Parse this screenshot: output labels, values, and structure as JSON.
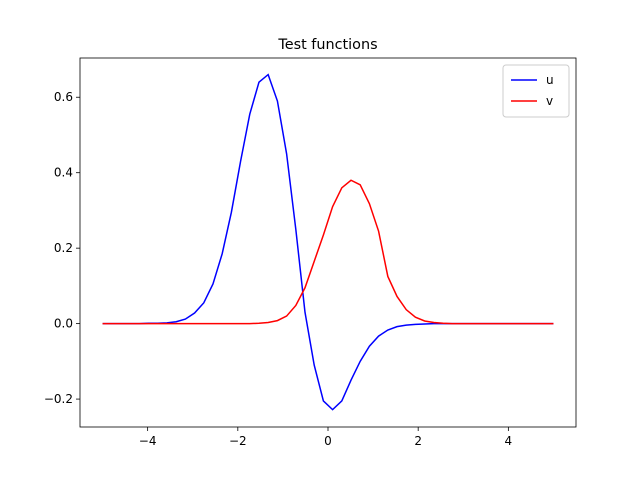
{
  "chart_data": {
    "type": "line",
    "title": "Test functions",
    "x": [
      -5.0,
      -4.796,
      -4.592,
      -4.388,
      -4.184,
      -3.98,
      -3.776,
      -3.571,
      -3.367,
      -3.163,
      -2.959,
      -2.755,
      -2.551,
      -2.347,
      -2.143,
      -1.939,
      -1.735,
      -1.531,
      -1.327,
      -1.122,
      -0.918,
      -0.714,
      -0.51,
      -0.306,
      -0.102,
      0.102,
      0.306,
      0.51,
      0.714,
      0.918,
      1.122,
      1.327,
      1.531,
      1.735,
      1.939,
      2.143,
      2.347,
      2.551,
      2.755,
      2.959,
      3.163,
      3.367,
      3.571,
      3.776,
      3.98,
      4.184,
      4.388,
      4.592,
      4.796,
      5.0
    ],
    "series": [
      {
        "name": "u",
        "color": "#0000ff",
        "values": [
          0,
          0,
          0,
          0,
          0,
          0.001,
          0.001,
          0.002,
          0.005,
          0.012,
          0.028,
          0.055,
          0.105,
          0.185,
          0.295,
          0.43,
          0.555,
          0.64,
          0.66,
          0.59,
          0.45,
          0.25,
          0.03,
          -0.11,
          -0.205,
          -0.228,
          -0.205,
          -0.15,
          -0.1,
          -0.06,
          -0.033,
          -0.017,
          -0.008,
          -0.004,
          -0.002,
          -0.001,
          0,
          0,
          0,
          0,
          0,
          0,
          0,
          0,
          0,
          0,
          0,
          0,
          0,
          0
        ]
      },
      {
        "name": "v",
        "color": "#ff0000",
        "values": [
          0,
          0,
          0,
          0,
          0,
          0,
          0,
          0,
          0,
          0,
          0,
          0,
          0,
          0,
          0,
          0,
          0,
          0.001,
          0.003,
          0.008,
          0.02,
          0.048,
          0.095,
          0.165,
          0.235,
          0.31,
          0.36,
          0.38,
          0.368,
          0.318,
          0.245,
          0.125,
          0.072,
          0.037,
          0.017,
          0.007,
          0.003,
          0.001,
          0,
          0,
          0,
          0,
          0,
          0,
          0,
          0,
          0,
          0,
          0,
          0
        ]
      }
    ],
    "xlim": [
      -5.5,
      5.5
    ],
    "ylim": [
      -0.274,
      0.704
    ],
    "xticks": [
      {
        "value": -4,
        "label": "−4"
      },
      {
        "value": -2,
        "label": "−2"
      },
      0,
      2,
      4
    ],
    "yticks": [
      {
        "value": -0.2,
        "label": "−0.2"
      },
      {
        "value": 0,
        "label": "0.0"
      },
      0.2,
      0.4,
      0.6
    ],
    "legend": "upper right"
  }
}
